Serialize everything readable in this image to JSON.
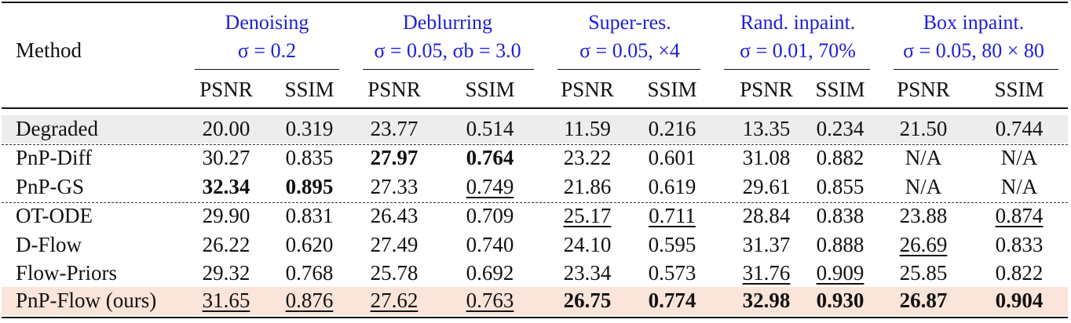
{
  "table": {
    "method_header": "Method",
    "tasks": [
      {
        "name": "Denoising",
        "params": "σ = 0.2"
      },
      {
        "name": "Deblurring",
        "params": "σ = 0.05, σb = 3.0"
      },
      {
        "name": "Super-res.",
        "params": "σ = 0.05, ×4"
      },
      {
        "name": "Rand. inpaint.",
        "params": "σ = 0.01, 70%"
      },
      {
        "name": "Box inpaint.",
        "params": "σ = 0.05, 80 × 80"
      }
    ],
    "metrics": [
      "PSNR",
      "SSIM",
      "PSNR",
      "SSIM",
      "PSNR",
      "SSIM",
      "PSNR",
      "SSIM",
      "PSNR",
      "SSIM"
    ],
    "rows": [
      {
        "method": "Degraded",
        "values": [
          "20.00",
          "0.319",
          "23.77",
          "0.514",
          "11.59",
          "0.216",
          "13.35",
          "0.234",
          "21.50",
          "0.744"
        ]
      },
      {
        "method": "PnP-Diff",
        "values": [
          "30.27",
          "0.835",
          "27.97",
          "0.764",
          "23.22",
          "0.601",
          "31.08",
          "0.882",
          "N/A",
          "N/A"
        ]
      },
      {
        "method": "PnP-GS",
        "values": [
          "32.34",
          "0.895",
          "27.33",
          "0.749",
          "21.86",
          "0.619",
          "29.61",
          "0.855",
          "N/A",
          "N/A"
        ]
      },
      {
        "method": "OT-ODE",
        "values": [
          "29.90",
          "0.831",
          "26.43",
          "0.709",
          "25.17",
          "0.711",
          "28.84",
          "0.838",
          "23.88",
          "0.874"
        ]
      },
      {
        "method": "D-Flow",
        "values": [
          "26.22",
          "0.620",
          "27.49",
          "0.740",
          "24.10",
          "0.595",
          "31.37",
          "0.888",
          "26.69",
          "0.833"
        ]
      },
      {
        "method": "Flow-Priors",
        "values": [
          "29.32",
          "0.768",
          "25.78",
          "0.692",
          "23.34",
          "0.573",
          "31.76",
          "0.909",
          "25.85",
          "0.822"
        ]
      },
      {
        "method": "PnP-Flow (ours)",
        "values": [
          "31.65",
          "0.876",
          "27.62",
          "0.763",
          "26.75",
          "0.774",
          "32.98",
          "0.930",
          "26.87",
          "0.904"
        ]
      }
    ],
    "bold_cells": [
      [
        1,
        2
      ],
      [
        1,
        3
      ],
      [
        2,
        0
      ],
      [
        2,
        1
      ],
      [
        6,
        4
      ],
      [
        6,
        5
      ],
      [
        6,
        6
      ],
      [
        6,
        7
      ],
      [
        6,
        8
      ],
      [
        6,
        9
      ]
    ],
    "underlined_cells": [
      [
        2,
        3
      ],
      [
        3,
        4
      ],
      [
        3,
        5
      ],
      [
        3,
        9
      ],
      [
        4,
        8
      ],
      [
        5,
        6
      ],
      [
        5,
        7
      ],
      [
        6,
        0
      ],
      [
        6,
        1
      ],
      [
        6,
        2
      ],
      [
        6,
        3
      ]
    ],
    "colors": {
      "task_header": "#2020d8",
      "degraded_band": "#ededed",
      "ours_band": "#fbe4da"
    }
  }
}
